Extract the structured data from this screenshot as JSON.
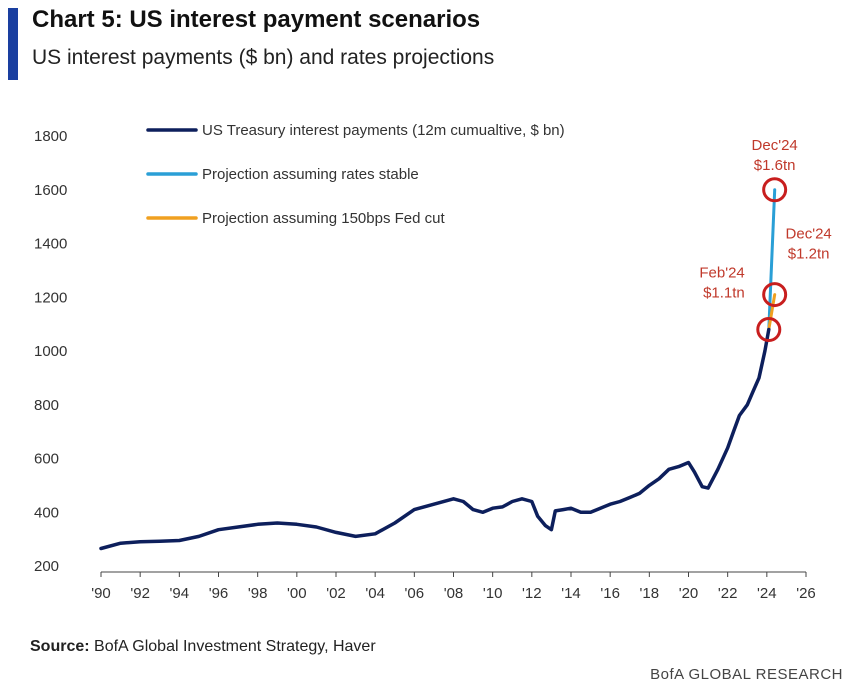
{
  "header": {
    "title": "Chart 5: US interest payment scenarios",
    "subtitle": "US interest payments ($ bn) and rates projections"
  },
  "footer": {
    "source_label": "Source:",
    "source_text": " BofA Global Investment Strategy, Haver",
    "brand": "BofA GLOBAL RESEARCH"
  },
  "colors": {
    "actual": "#0d1f5c",
    "stable": "#2a9fd6",
    "cut": "#f0a020",
    "annotation": "#c0392b",
    "accent": "#1a3fa0"
  },
  "chart_data": {
    "type": "line",
    "xlim": [
      1990,
      2026
    ],
    "ylim": [
      200,
      1800
    ],
    "x_tick_labels": [
      "'90",
      "'92",
      "'94",
      "'96",
      "'98",
      "'00",
      "'02",
      "'04",
      "'06",
      "'08",
      "'10",
      "'12",
      "'14",
      "'16",
      "'18",
      "'20",
      "'22",
      "'24",
      "'26"
    ],
    "x_ticks": [
      1990,
      1992,
      1994,
      1996,
      1998,
      2000,
      2002,
      2004,
      2006,
      2008,
      2010,
      2012,
      2014,
      2016,
      2018,
      2020,
      2022,
      2024,
      2026
    ],
    "y_ticks": [
      200,
      400,
      600,
      800,
      1000,
      1200,
      1400,
      1600,
      1800
    ],
    "legend_position": "top-left",
    "series": [
      {
        "name": "US Treasury interest payments (12m cumualtive, $ bn)",
        "x": [
          1990,
          1991,
          1992,
          1993,
          1994,
          1995,
          1996,
          1997,
          1998,
          1999,
          2000,
          2001,
          2002,
          2003,
          2004,
          2005,
          2006,
          2007,
          2008,
          2008.5,
          2009,
          2009.5,
          2010,
          2010.5,
          2011,
          2011.5,
          2012,
          2012.3,
          2012.7,
          2013,
          2013.2,
          2013.6,
          2014,
          2014.5,
          2015,
          2015.5,
          2016,
          2016.5,
          2017,
          2017.5,
          2018,
          2018.5,
          2019,
          2019.5,
          2020,
          2020.3,
          2020.7,
          2021,
          2021.5,
          2022,
          2022.3,
          2022.6,
          2023,
          2023.3,
          2023.6,
          2023.9,
          2024.1
        ],
        "y": [
          265,
          285,
          290,
          292,
          295,
          310,
          335,
          345,
          355,
          360,
          355,
          345,
          325,
          310,
          320,
          360,
          410,
          430,
          450,
          440,
          410,
          400,
          415,
          420,
          440,
          450,
          440,
          385,
          350,
          335,
          405,
          410,
          415,
          400,
          400,
          415,
          430,
          440,
          455,
          470,
          500,
          525,
          560,
          570,
          585,
          550,
          495,
          490,
          560,
          640,
          700,
          760,
          800,
          850,
          900,
          1000,
          1080
        ]
      },
      {
        "name": "Projection assuming rates stable",
        "x": [
          2024.1,
          2024.4
        ],
        "y": [
          1080,
          1600
        ]
      },
      {
        "name": "Projection assuming 150bps Fed cut",
        "x": [
          2024.1,
          2024.4
        ],
        "y": [
          1080,
          1210
        ]
      }
    ],
    "annotations": [
      {
        "line1": "Feb'24",
        "line2": "$1.1tn",
        "x": 2024.1,
        "y": 1080
      },
      {
        "line1": "Dec'24",
        "line2": "$1.6tn",
        "x": 2024.4,
        "y": 1600
      },
      {
        "line1": "Dec'24",
        "line2": "$1.2tn",
        "x": 2024.4,
        "y": 1210
      }
    ]
  }
}
